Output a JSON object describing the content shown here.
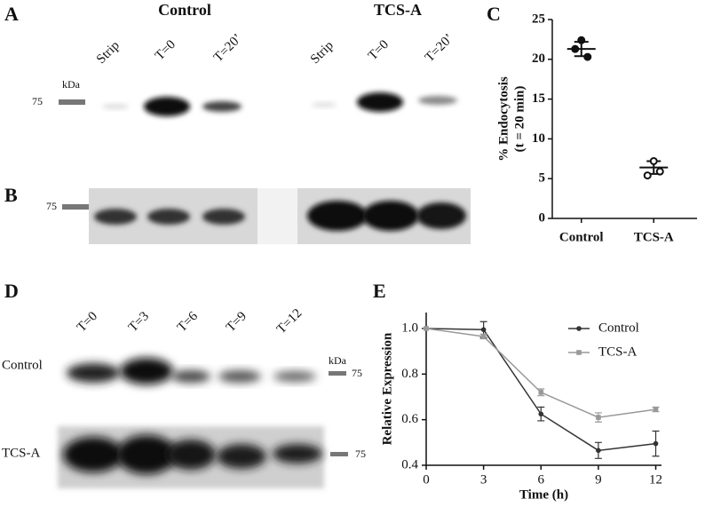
{
  "panels": {
    "A": {
      "letter": "A",
      "groups": [
        "Control",
        "TCS-A"
      ],
      "lanes": [
        "Strip",
        "T=0",
        "T=20’",
        "Strip",
        "T=0",
        "T=20’"
      ],
      "kda": "kDa",
      "marker": "75"
    },
    "B": {
      "letter": "B",
      "marker": "75"
    },
    "C": {
      "letter": "C"
    },
    "D": {
      "letter": "D",
      "lanes": [
        "T=0",
        "T=3",
        "T=6",
        "T=9",
        "T=12"
      ],
      "rows": [
        "Control",
        "TCS-A"
      ],
      "kda": "kDa",
      "markers": [
        "75",
        "75"
      ]
    },
    "E": {
      "letter": "E"
    }
  },
  "chart_data": [
    {
      "type": "dotplot",
      "categories": [
        "Control",
        "TCS-A"
      ],
      "points": [
        [
          22.4,
          21.3,
          20.3
        ],
        [
          7.2,
          5.4,
          5.9
        ]
      ],
      "means": [
        21.3,
        6.4
      ],
      "errors": [
        0.9,
        0.8
      ],
      "markers": [
        "filled",
        "open"
      ],
      "ylabel": [
        "% Endocytosis",
        "(t = 20 min)"
      ],
      "ylim": [
        0,
        25
      ],
      "yticks": [
        0,
        5,
        10,
        15,
        20,
        25
      ],
      "color": "#111111"
    },
    {
      "type": "line",
      "x": [
        0,
        3,
        6,
        9,
        12
      ],
      "xlim": [
        0,
        12.3
      ],
      "xticks": [
        0,
        3,
        6,
        9,
        12
      ],
      "ylim": [
        0.4,
        1.07
      ],
      "yticks": [
        0.4,
        0.6,
        0.8,
        {
          "value": 1,
          "label": "1.0"
        }
      ],
      "xlabel": "Time (h)",
      "ylabel": "Relative Expression",
      "legend": "upper right",
      "series": [
        {
          "name": "Control",
          "color": "#333333",
          "values": [
            1,
            0.995,
            0.625,
            0.465,
            0.495
          ],
          "errors": [
            0,
            0.035,
            0.03,
            0.035,
            0.055
          ]
        },
        {
          "name": "TCS-A",
          "color": "#999999",
          "values": [
            1,
            0.965,
            0.72,
            0.61,
            0.645
          ],
          "errors": [
            0,
            0.01,
            0.015,
            0.02,
            0.01
          ]
        }
      ]
    }
  ]
}
